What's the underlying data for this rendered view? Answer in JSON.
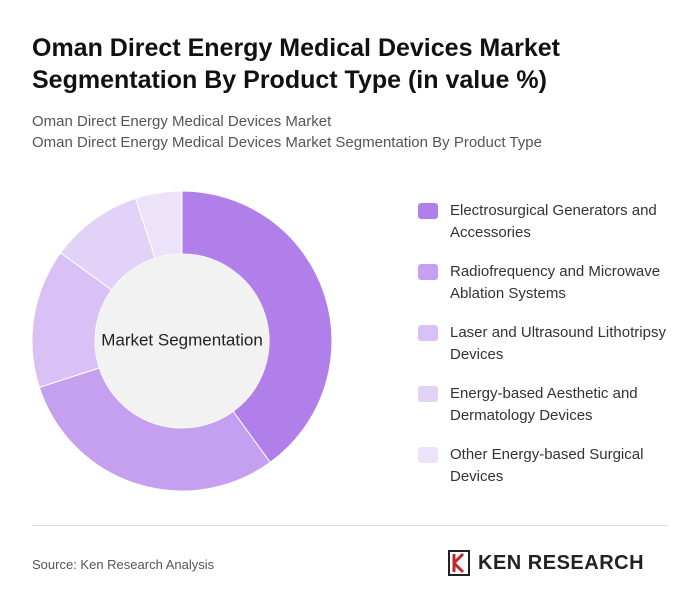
{
  "chart_data": {
    "type": "donut",
    "title": "Oman Direct Energy Medical Devices Market Segmentation By Product Type (in value %)",
    "subtitle": [
      "Oman Direct Energy Medical Devices Market",
      "Oman Direct Energy Medical Devices Market Segmentation By Product Type"
    ],
    "center_label": "Market Segmentation",
    "categories": [
      "Electrosurgical Generators and Accessories",
      "Radiofrequency and Microwave Ablation Systems",
      "Laser and Ultrasound Lithotripsy Devices",
      "Energy-based Aesthetic and Dermatology Devices",
      "Other Energy-based Surgical Devices"
    ],
    "values": [
      40,
      30,
      15,
      10,
      5
    ],
    "colors": [
      "#b07fea",
      "#c5a0f0",
      "#d9c1f5",
      "#e3d2f8",
      "#ece2fa"
    ],
    "source": "Source: Ken Research Analysis",
    "logo": "KEN RESEARCH"
  }
}
